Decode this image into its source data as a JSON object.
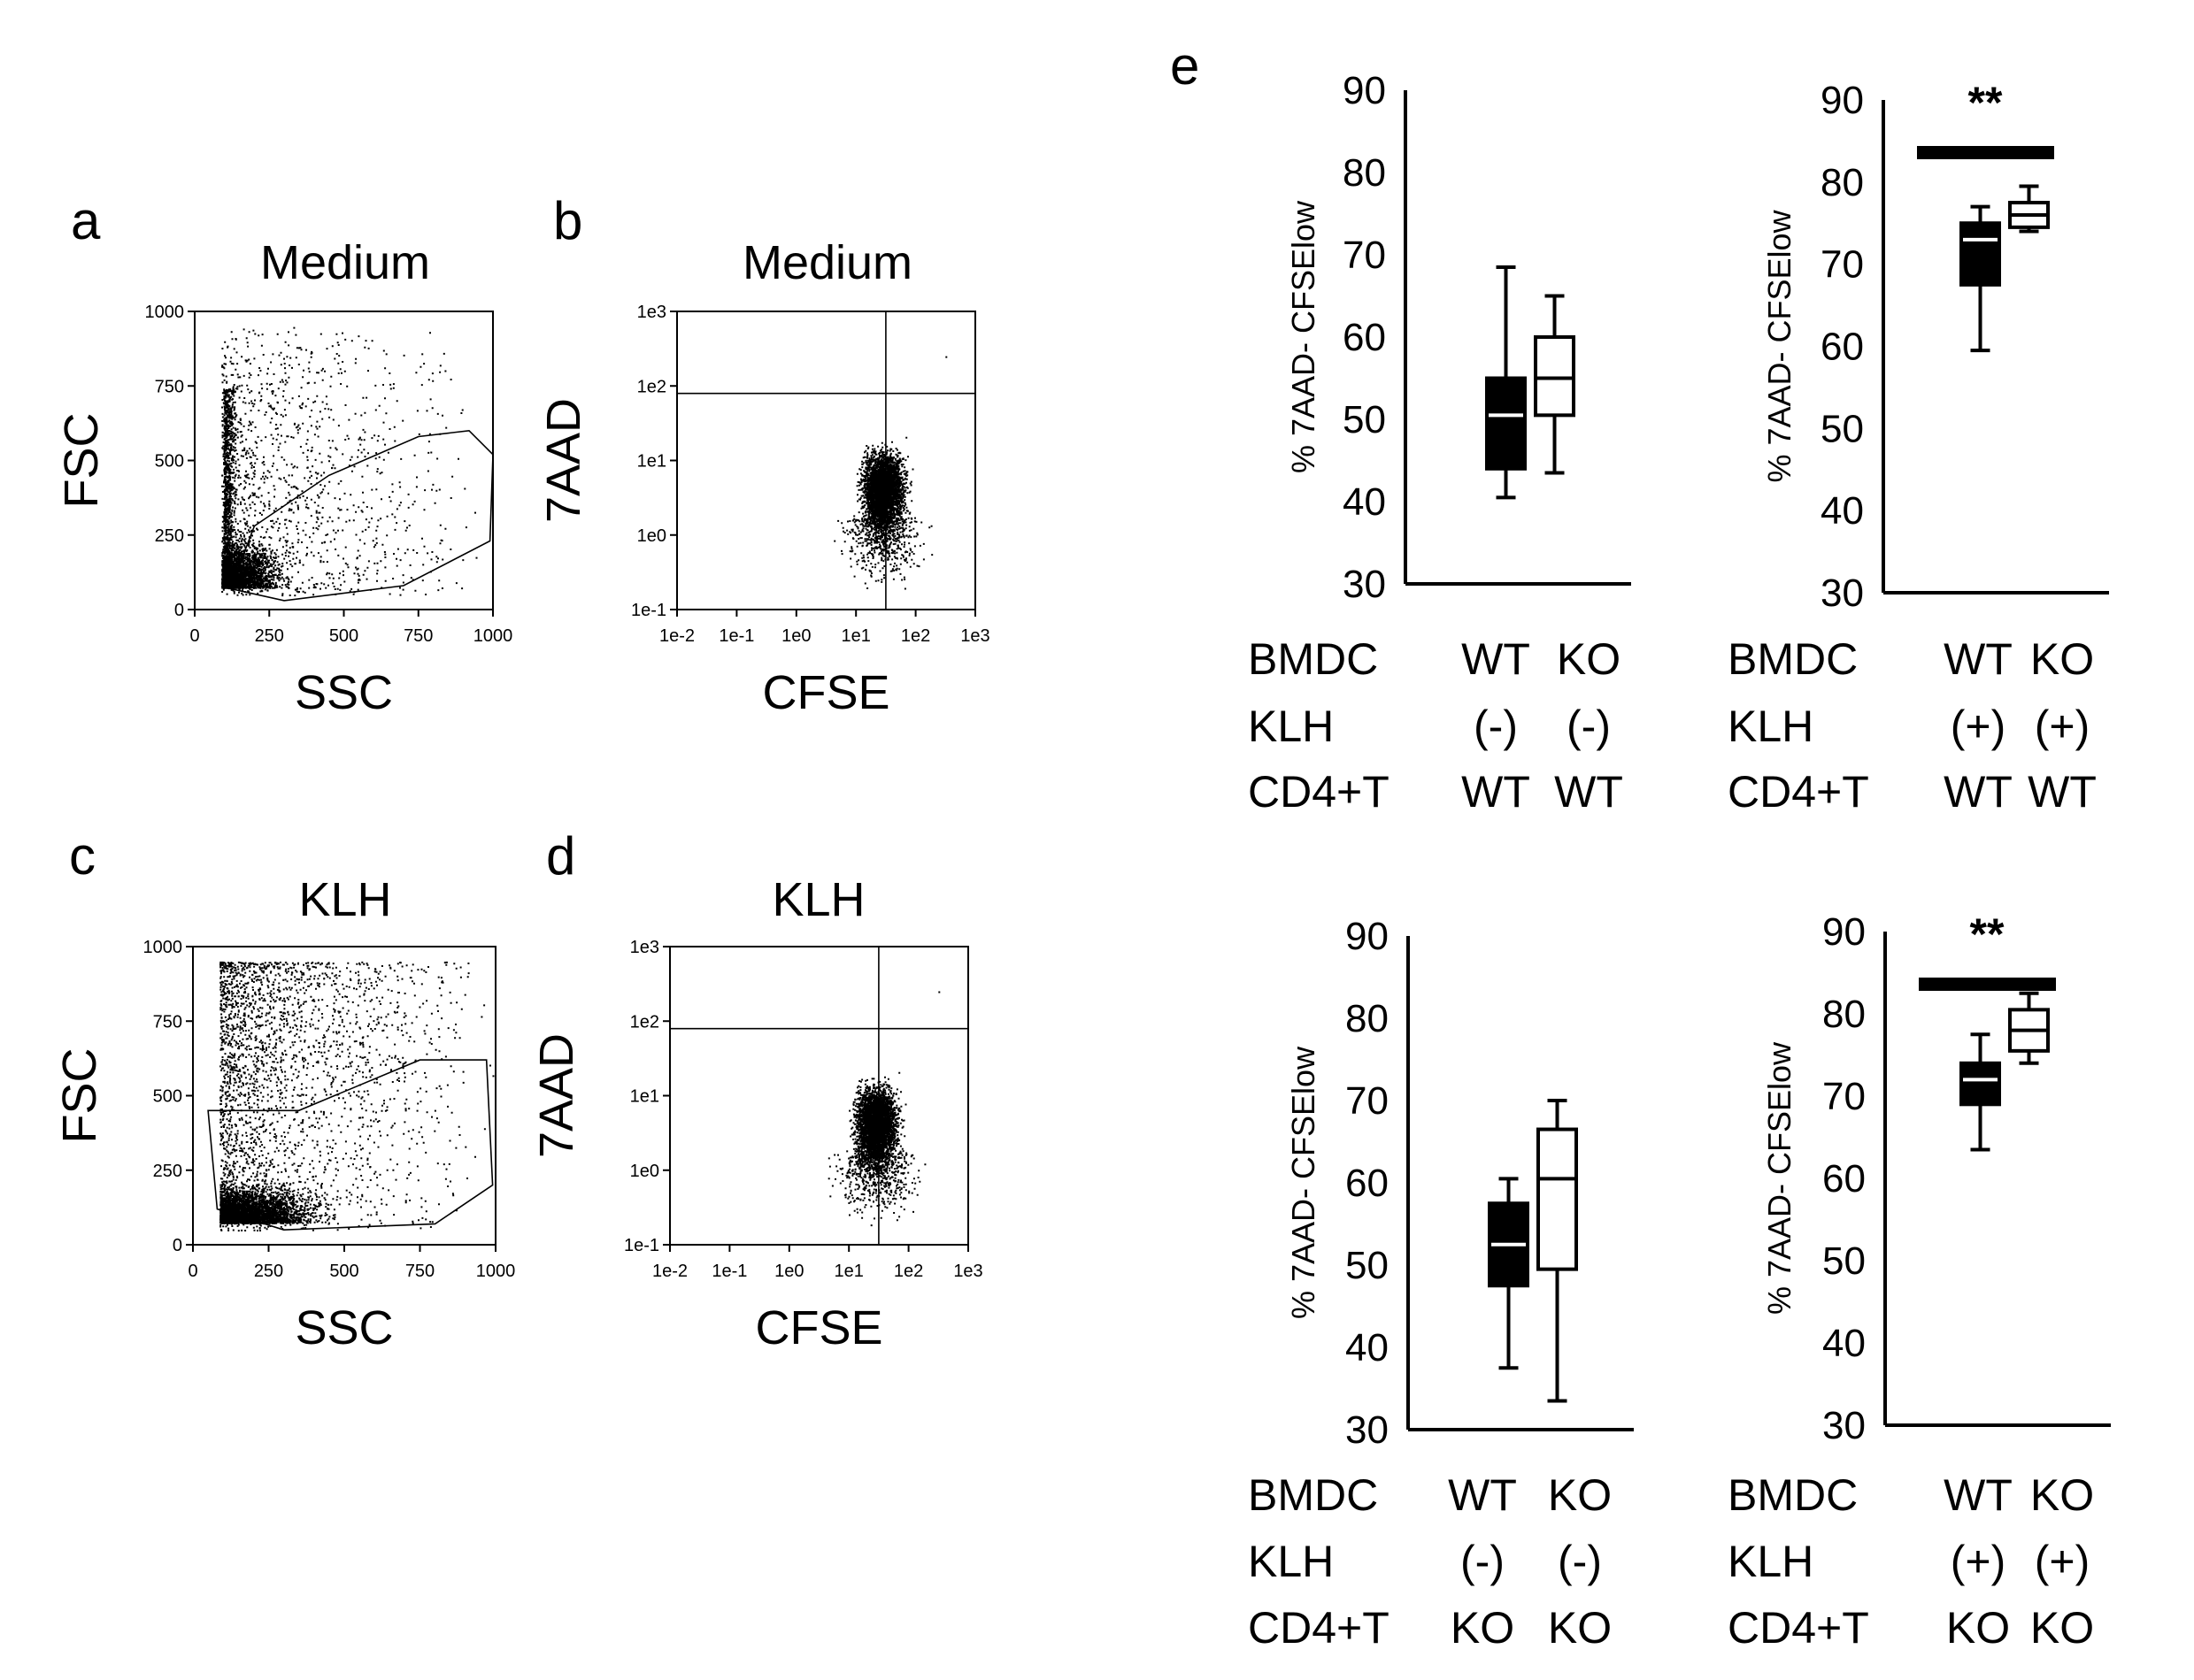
{
  "flow_panels": [
    {
      "letter": "a",
      "title": "Medium",
      "xlabel": "SSC",
      "ylabel": "FSC",
      "kind": "fsc",
      "xticks": [
        "0",
        "250",
        "500",
        "750",
        "1000"
      ],
      "yticks": [
        "0",
        "250",
        "500",
        "750",
        "1000"
      ]
    },
    {
      "letter": "b",
      "title": "Medium",
      "xlabel": "CFSE",
      "ylabel": "7AAD",
      "kind": "cfse",
      "xticks": [
        "1e-2",
        "1e-1",
        "1e0",
        "1e1",
        "1e2",
        "1e3"
      ],
      "yticks": [
        "1e-1",
        "1e0",
        "1e1",
        "1e2",
        "1e3"
      ]
    },
    {
      "letter": "c",
      "title": "KLH",
      "xlabel": "SSC",
      "ylabel": "FSC",
      "kind": "fsc",
      "xticks": [
        "0",
        "250",
        "500",
        "750",
        "1000"
      ],
      "yticks": [
        "0",
        "250",
        "500",
        "750",
        "1000"
      ]
    },
    {
      "letter": "d",
      "title": "KLH",
      "xlabel": "CFSE",
      "ylabel": "7AAD",
      "kind": "cfse",
      "xticks": [
        "1e-2",
        "1e-1",
        "1e0",
        "1e1",
        "1e2",
        "1e3"
      ],
      "yticks": [
        "1e-1",
        "1e0",
        "1e1",
        "1e2",
        "1e3"
      ]
    }
  ],
  "panel_e_letter": "e",
  "chart_data": [
    {
      "type": "box",
      "ylabel": "% 7AAD- CFSElow",
      "ylim": [
        30,
        90
      ],
      "yticks": [
        "30",
        "40",
        "50",
        "60",
        "70",
        "80",
        "90"
      ],
      "rows": [
        {
          "label": "BMDC",
          "values": [
            "WT",
            "KO"
          ]
        },
        {
          "label": "KLH",
          "values": [
            "(-)",
            "(-)"
          ]
        },
        {
          "label": "CD4+T",
          "values": [
            "WT",
            "WT"
          ]
        }
      ],
      "boxes": [
        {
          "name": "WT",
          "fill": "#000000",
          "min": 40.5,
          "q1": 44,
          "median": 50.5,
          "q3": 55,
          "max": 68.5
        },
        {
          "name": "KO",
          "fill": "#ffffff",
          "min": 43.5,
          "q1": 50.5,
          "median": 55,
          "q3": 60,
          "max": 65
        }
      ],
      "significance": ""
    },
    {
      "type": "box",
      "ylabel": "% 7AAD- CFSElow",
      "ylim": [
        30,
        90
      ],
      "yticks": [
        "30",
        "40",
        "50",
        "60",
        "70",
        "80",
        "90"
      ],
      "rows": [
        {
          "label": "BMDC",
          "values": [
            "WT",
            "KO"
          ]
        },
        {
          "label": "KLH",
          "values": [
            "(+)",
            "(+)"
          ]
        },
        {
          "label": "CD4+T",
          "values": [
            "WT",
            "WT"
          ]
        }
      ],
      "boxes": [
        {
          "name": "WT",
          "fill": "#000000",
          "min": 59.5,
          "q1": 67.5,
          "median": 73,
          "q3": 75,
          "max": 77
        },
        {
          "name": "KO",
          "fill": "#ffffff",
          "min": 74,
          "q1": 74.5,
          "median": 76,
          "q3": 77.5,
          "max": 79.5
        }
      ],
      "significance": "**"
    },
    {
      "type": "box",
      "ylabel": "% 7AAD- CFSElow",
      "ylim": [
        30,
        90
      ],
      "yticks": [
        "30",
        "40",
        "50",
        "60",
        "70",
        "80",
        "90"
      ],
      "rows": [
        {
          "label": "BMDC",
          "values": [
            "WT",
            "KO"
          ]
        },
        {
          "label": "KLH",
          "values": [
            "(-)",
            "(-)"
          ]
        },
        {
          "label": "CD4+T",
          "values": [
            "KO",
            "KO"
          ]
        }
      ],
      "boxes": [
        {
          "name": "WT",
          "fill": "#000000",
          "min": 37.5,
          "q1": 47.5,
          "median": 52.5,
          "q3": 57.5,
          "max": 60.5
        },
        {
          "name": "KO",
          "fill": "#ffffff",
          "min": 33.5,
          "q1": 49.5,
          "median": 60.5,
          "q3": 66.5,
          "max": 70
        }
      ],
      "significance": ""
    },
    {
      "type": "box",
      "ylabel": "% 7AAD- CFSElow",
      "ylim": [
        30,
        90
      ],
      "yticks": [
        "30",
        "40",
        "50",
        "60",
        "70",
        "80",
        "90"
      ],
      "rows": [
        {
          "label": "BMDC",
          "values": [
            "WT",
            "KO"
          ]
        },
        {
          "label": "KLH",
          "values": [
            "(+)",
            "(+)"
          ]
        },
        {
          "label": "CD4+T",
          "values": [
            "KO",
            "KO"
          ]
        }
      ],
      "boxes": [
        {
          "name": "WT",
          "fill": "#000000",
          "min": 63.5,
          "q1": 69,
          "median": 72,
          "q3": 74,
          "max": 77.5
        },
        {
          "name": "KO",
          "fill": "#ffffff",
          "min": 74,
          "q1": 75.5,
          "median": 78,
          "q3": 80.5,
          "max": 82.5
        }
      ],
      "significance": "**"
    }
  ]
}
